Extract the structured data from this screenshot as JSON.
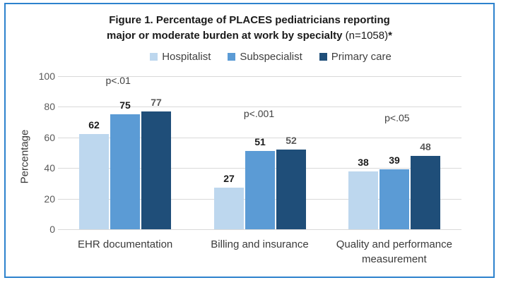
{
  "figure": {
    "title_line1": "Figure 1. Percentage of PLACES pediatricians reporting",
    "title_line2_bold": "major or moderate burden at work by specialty",
    "title_line2_normal": " (n=1058)",
    "title_line2_star": "*"
  },
  "chart_data": {
    "type": "bar",
    "title": "Figure 1. Percentage of PLACES pediatricians reporting major or moderate burden at work by specialty (n=1058)*",
    "categories": [
      "EHR documentation",
      "Billing and insurance",
      "Quality and performance measurement"
    ],
    "series": [
      {
        "name": "Hospitalist",
        "color": "#BDD7EE",
        "label_color": "#1a1a1a",
        "values": [
          62,
          27,
          38
        ]
      },
      {
        "name": "Subspecialist",
        "color": "#5B9BD5",
        "label_color": "#1a1a1a",
        "values": [
          75,
          51,
          39
        ]
      },
      {
        "name": "Primary care",
        "color": "#1F4E79",
        "label_color": "#595959",
        "values": [
          77,
          52,
          48
        ]
      }
    ],
    "annotations": [
      "p<.01",
      "p<.001",
      "p<.05"
    ],
    "xlabel": "",
    "ylabel": "Percentage",
    "ylim": [
      0,
      100
    ],
    "yticks": [
      0,
      20,
      40,
      60,
      80,
      100
    ],
    "grid": "horizontal",
    "legend_position": "top"
  },
  "colors": {
    "frame_border": "#2D82CD",
    "gridline": "#D9D9D9",
    "tick_label": "#595959",
    "category_label": "#3A3A3A",
    "annotation": "#404040"
  }
}
